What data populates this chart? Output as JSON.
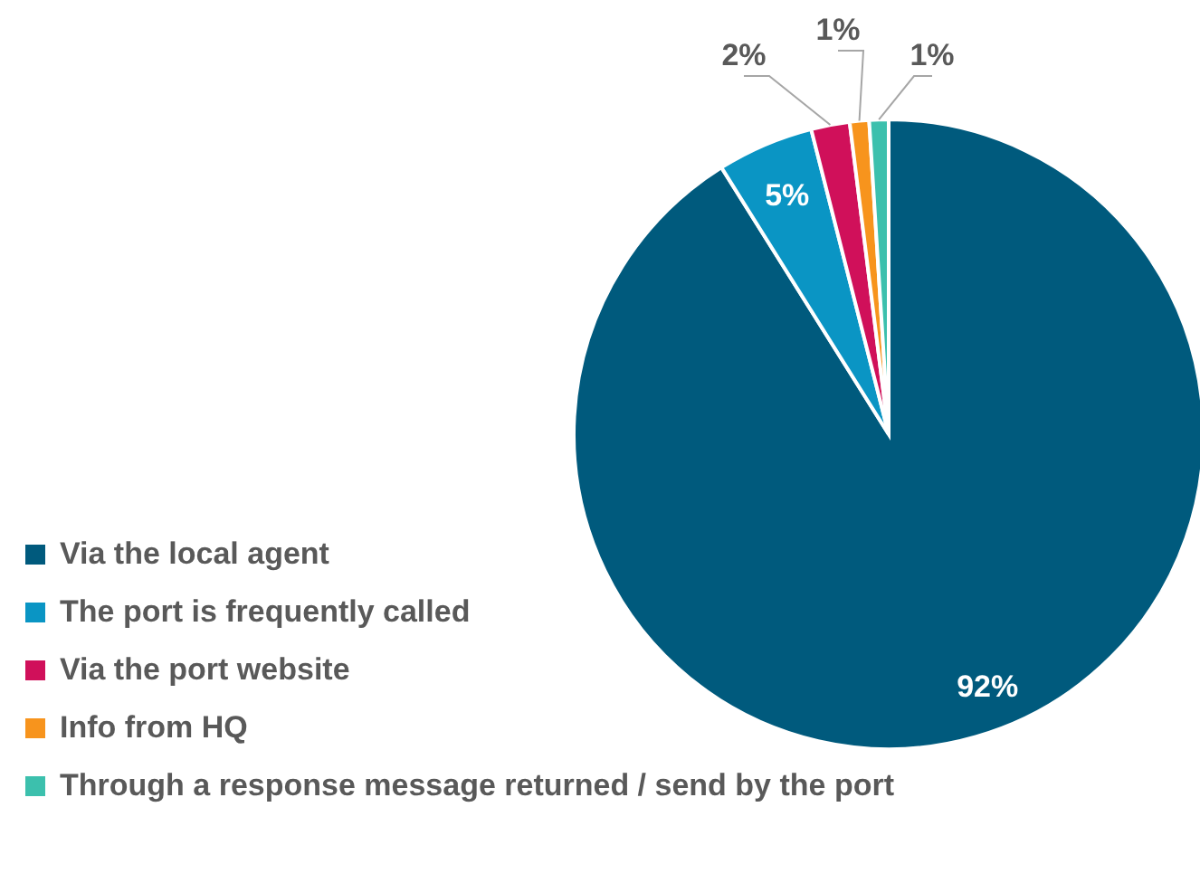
{
  "chart_data": {
    "type": "pie",
    "categories": [
      "Via the local agent",
      "The port is frequently called",
      "Via the port website",
      "Info from HQ",
      "Through a response message returned / send by the port"
    ],
    "values": [
      92,
      5,
      2,
      1,
      1
    ],
    "colors": [
      "#005a7d",
      "#0a95c4",
      "#d0105a",
      "#f7941d",
      "#3cc0ad"
    ],
    "value_labels": [
      "92%",
      "5%",
      "2%",
      "1%",
      "1%"
    ],
    "legend": "bottom left"
  }
}
